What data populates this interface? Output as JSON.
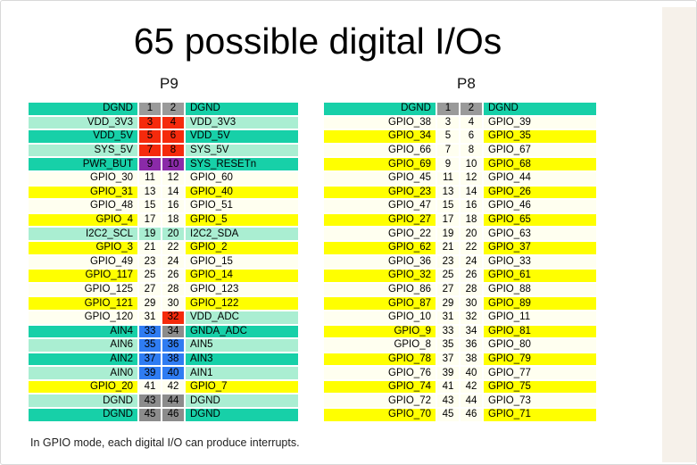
{
  "slide": {
    "title": "65 possible digital I/Os",
    "footer": "In GPIO mode, each digital I/O can produce interrupts."
  },
  "colors": {
    "teal": "#17d0a8",
    "mint": "#aaeed2",
    "yellow": "#ffff00",
    "cream": "#fffff0",
    "red": "#f52a0c",
    "purple": "#8a2aa8",
    "blue": "#2f7cf2",
    "gray": "#8c8c8c",
    "hgray": "#9a9a9a"
  },
  "p9": {
    "header": "P9",
    "rows": [
      [
        "DGND",
        "1",
        "2",
        "DGND",
        "teal",
        "hgray",
        "hgray",
        "teal"
      ],
      [
        "VDD_3V3",
        "3",
        "4",
        "VDD_3V3",
        "mint",
        "red",
        "red",
        "mint"
      ],
      [
        "VDD_5V",
        "5",
        "6",
        "VDD_5V",
        "teal",
        "red",
        "red",
        "teal"
      ],
      [
        "SYS_5V",
        "7",
        "8",
        "SYS_5V",
        "mint",
        "red",
        "red",
        "mint"
      ],
      [
        "PWR_BUT",
        "9",
        "10",
        "SYS_RESETn",
        "teal",
        "purple",
        "purple",
        "teal"
      ],
      [
        "GPIO_30",
        "11",
        "12",
        "GPIO_60",
        "cream",
        "cream",
        "cream",
        "cream"
      ],
      [
        "GPIO_31",
        "13",
        "14",
        "GPIO_40",
        "yellow",
        "cream",
        "cream",
        "yellow"
      ],
      [
        "GPIO_48",
        "15",
        "16",
        "GPIO_51",
        "cream",
        "cream",
        "cream",
        "cream"
      ],
      [
        "GPIO_4",
        "17",
        "18",
        "GPIO_5",
        "yellow",
        "cream",
        "cream",
        "yellow"
      ],
      [
        "I2C2_SCL",
        "19",
        "20",
        "I2C2_SDA",
        "mint",
        "mint",
        "mint",
        "mint"
      ],
      [
        "GPIO_3",
        "21",
        "22",
        "GPIO_2",
        "yellow",
        "cream",
        "cream",
        "yellow"
      ],
      [
        "GPIO_49",
        "23",
        "24",
        "GPIO_15",
        "cream",
        "cream",
        "cream",
        "cream"
      ],
      [
        "GPIO_117",
        "25",
        "26",
        "GPIO_14",
        "yellow",
        "cream",
        "cream",
        "yellow"
      ],
      [
        "GPIO_125",
        "27",
        "28",
        "GPIO_123",
        "cream",
        "cream",
        "cream",
        "cream"
      ],
      [
        "GPIO_121",
        "29",
        "30",
        "GPIO_122",
        "yellow",
        "cream",
        "cream",
        "yellow"
      ],
      [
        "GPIO_120",
        "31",
        "32",
        "VDD_ADC",
        "cream",
        "cream",
        "red",
        "mint"
      ],
      [
        "AIN4",
        "33",
        "34",
        "GNDA_ADC",
        "teal",
        "blue",
        "gray",
        "teal"
      ],
      [
        "AIN6",
        "35",
        "36",
        "AIN5",
        "mint",
        "blue",
        "blue",
        "mint"
      ],
      [
        "AIN2",
        "37",
        "38",
        "AIN3",
        "teal",
        "blue",
        "blue",
        "teal"
      ],
      [
        "AIN0",
        "39",
        "40",
        "AIN1",
        "mint",
        "blue",
        "blue",
        "mint"
      ],
      [
        "GPIO_20",
        "41",
        "42",
        "GPIO_7",
        "yellow",
        "cream",
        "cream",
        "yellow"
      ],
      [
        "DGND",
        "43",
        "44",
        "DGND",
        "mint",
        "gray",
        "gray",
        "mint"
      ],
      [
        "DGND",
        "45",
        "46",
        "DGND",
        "teal",
        "gray",
        "gray",
        "teal"
      ]
    ]
  },
  "p8": {
    "header": "P8",
    "rows": [
      [
        "DGND",
        "1",
        "2",
        "DGND",
        "teal",
        "hgray",
        "hgray",
        "teal"
      ],
      [
        "GPIO_38",
        "3",
        "4",
        "GPIO_39",
        "cream",
        "cream",
        "cream",
        "cream"
      ],
      [
        "GPIO_34",
        "5",
        "6",
        "GPIO_35",
        "yellow",
        "cream",
        "cream",
        "yellow"
      ],
      [
        "GPIO_66",
        "7",
        "8",
        "GPIO_67",
        "cream",
        "cream",
        "cream",
        "cream"
      ],
      [
        "GPIO_69",
        "9",
        "10",
        "GPIO_68",
        "yellow",
        "cream",
        "cream",
        "yellow"
      ],
      [
        "GPIO_45",
        "11",
        "12",
        "GPIO_44",
        "cream",
        "cream",
        "cream",
        "cream"
      ],
      [
        "GPIO_23",
        "13",
        "14",
        "GPIO_26",
        "yellow",
        "cream",
        "cream",
        "yellow"
      ],
      [
        "GPIO_47",
        "15",
        "16",
        "GPIO_46",
        "cream",
        "cream",
        "cream",
        "cream"
      ],
      [
        "GPIO_27",
        "17",
        "18",
        "GPIO_65",
        "yellow",
        "cream",
        "cream",
        "yellow"
      ],
      [
        "GPIO_22",
        "19",
        "20",
        "GPIO_63",
        "cream",
        "cream",
        "cream",
        "cream"
      ],
      [
        "GPIO_62",
        "21",
        "22",
        "GPIO_37",
        "yellow",
        "cream",
        "cream",
        "yellow"
      ],
      [
        "GPIO_36",
        "23",
        "24",
        "GPIO_33",
        "cream",
        "cream",
        "cream",
        "cream"
      ],
      [
        "GPIO_32",
        "25",
        "26",
        "GPIO_61",
        "yellow",
        "cream",
        "cream",
        "yellow"
      ],
      [
        "GPIO_86",
        "27",
        "28",
        "GPIO_88",
        "cream",
        "cream",
        "cream",
        "cream"
      ],
      [
        "GPIO_87",
        "29",
        "30",
        "GPIO_89",
        "yellow",
        "cream",
        "cream",
        "yellow"
      ],
      [
        "GPIO_10",
        "31",
        "32",
        "GPIO_11",
        "cream",
        "cream",
        "cream",
        "cream"
      ],
      [
        "GPIO_9",
        "33",
        "34",
        "GPIO_81",
        "yellow",
        "cream",
        "cream",
        "yellow"
      ],
      [
        "GPIO_8",
        "35",
        "36",
        "GPIO_80",
        "cream",
        "cream",
        "cream",
        "cream"
      ],
      [
        "GPIO_78",
        "37",
        "38",
        "GPIO_79",
        "yellow",
        "cream",
        "cream",
        "yellow"
      ],
      [
        "GPIO_76",
        "39",
        "40",
        "GPIO_77",
        "cream",
        "cream",
        "cream",
        "cream"
      ],
      [
        "GPIO_74",
        "41",
        "42",
        "GPIO_75",
        "yellow",
        "cream",
        "cream",
        "yellow"
      ],
      [
        "GPIO_72",
        "43",
        "44",
        "GPIO_73",
        "cream",
        "cream",
        "cream",
        "cream"
      ],
      [
        "GPIO_70",
        "45",
        "46",
        "GPIO_71",
        "yellow",
        "cream",
        "cream",
        "yellow"
      ]
    ]
  }
}
